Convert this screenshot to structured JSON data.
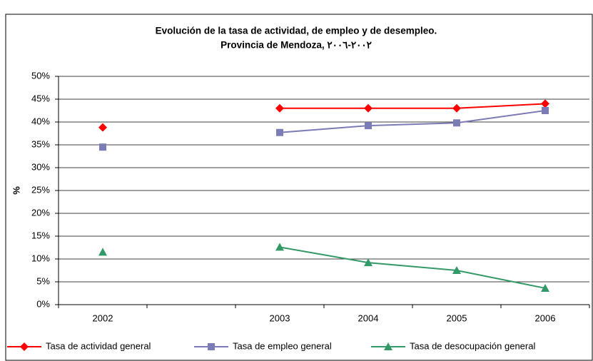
{
  "chart_data": {
    "type": "line",
    "title": "Evolución de la tasa de actividad, de empleo y de desempleo.",
    "subtitle": "Provincia de Mendoza, ٢٠٠٢-٢٠٠٦",
    "y_label": "%",
    "categories": [
      "2002",
      null,
      "2003",
      "2004",
      "2005",
      "2006"
    ],
    "series": [
      {
        "name": "Tasa de actividad general",
        "color": "#ff0000",
        "marker": "diamond",
        "values": [
          38.8,
          null,
          43.0,
          43.0,
          43.0,
          44.0
        ]
      },
      {
        "name": "Tasa de empleo general",
        "color": "#7b7bb5",
        "marker": "square",
        "values": [
          34.5,
          null,
          37.7,
          39.2,
          39.8,
          42.5
        ]
      },
      {
        "name": "Tasa de desocupación general",
        "color": "#339966",
        "marker": "triangle",
        "values": [
          11.5,
          null,
          12.6,
          9.2,
          7.5,
          3.6
        ]
      }
    ],
    "ylim": [
      0,
      50
    ],
    "yticks": [
      {
        "value": 0,
        "label": "0%"
      },
      {
        "value": 5,
        "label": "5%"
      },
      {
        "value": 10,
        "label": "10%"
      },
      {
        "value": 15,
        "label": "15%"
      },
      {
        "value": 20,
        "label": "20%"
      },
      {
        "value": 25,
        "label": "25%"
      },
      {
        "value": 30,
        "label": "30%"
      },
      {
        "value": 35,
        "label": "35%"
      },
      {
        "value": 40,
        "label": "40%"
      },
      {
        "value": 45,
        "label": "45%"
      },
      {
        "value": 50,
        "label": "50%"
      }
    ],
    "grid": true,
    "legend": "bottom"
  }
}
